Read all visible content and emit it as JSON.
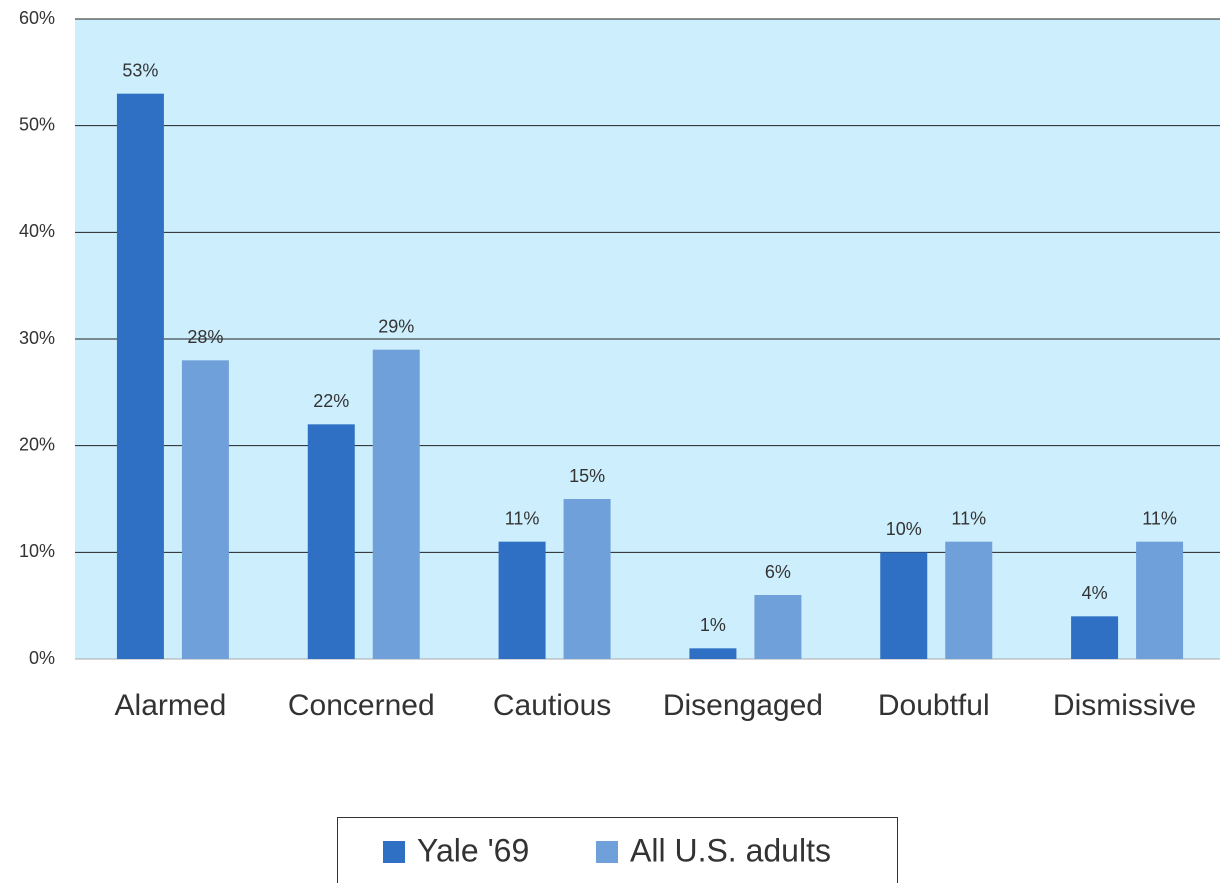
{
  "chart_data": {
    "type": "bar",
    "categories": [
      "Alarmed",
      "Concerned",
      "Cautious",
      "Disengaged",
      "Doubtful",
      "Dismissive"
    ],
    "series": [
      {
        "name": "Yale '69",
        "color": "#3070c4",
        "values": [
          53,
          22,
          11,
          1,
          10,
          4
        ],
        "value_labels": [
          "53%",
          "22%",
          "11%",
          "1%",
          "10%",
          "4%"
        ]
      },
      {
        "name": "All U.S. adults",
        "color": "#70a0da",
        "values": [
          28,
          29,
          15,
          6,
          11,
          11
        ],
        "value_labels": [
          "28%",
          "29%",
          "15%",
          "6%",
          "11%",
          "11%"
        ]
      }
    ],
    "ylim": [
      0,
      60
    ],
    "yticks": [
      {
        "value": 0,
        "label": "0%"
      },
      {
        "value": 10,
        "label": "10%"
      },
      {
        "value": 20,
        "label": "20%"
      },
      {
        "value": 30,
        "label": "30%"
      },
      {
        "value": 40,
        "label": "40%"
      },
      {
        "value": 50,
        "label": "50%"
      },
      {
        "value": 60,
        "label": "60%"
      }
    ],
    "grid": true,
    "legend": "bottom"
  }
}
